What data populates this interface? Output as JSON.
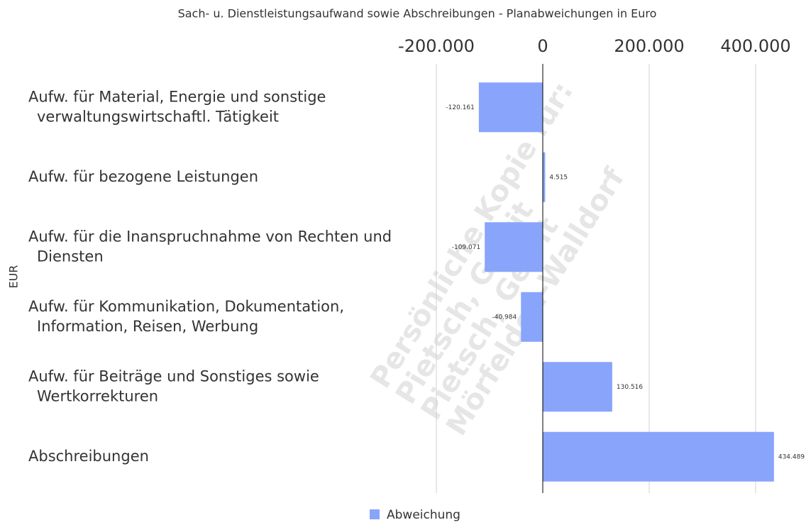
{
  "chart_data": {
    "type": "bar",
    "orientation": "horizontal",
    "title": "Sach- u. Dienstleistungsaufwand sowie Abschreibungen - Planabweichungen in Euro",
    "y_label": "EUR",
    "categories": [
      "Aufw. für Material, Energie und sonstige\nverwaltungswirtschaftl. Tätigkeit",
      "Aufw. für bezogene Leistungen",
      "Aufw. für die Inanspruchnahme von Rechten und\nDiensten",
      "Aufw. für Kommunikation, Dokumentation,\nInformation, Reisen, Werbung",
      "Aufw. für Beiträge und Sonstiges sowie\nWertkorrekturen",
      "Abschreibungen"
    ],
    "series": [
      {
        "name": "Abweichung",
        "color": "#89a4fb",
        "values": [
          -120161,
          4515,
          -109071,
          -40984,
          130516,
          434489
        ],
        "value_labels": [
          "-120.161",
          "4.515",
          "-109.071",
          "-40.984",
          "130.516",
          "434.489"
        ]
      }
    ],
    "xlim": [
      -240000,
      460000
    ],
    "xticks": [
      {
        "value": -200000,
        "label": "-200.000"
      },
      0,
      {
        "value": 200000,
        "label": "200.000"
      },
      {
        "value": 400000,
        "label": "400.000"
      }
    ],
    "grid": true,
    "legend": "bottom",
    "watermark": [
      "Persönliche Kopie für:",
      "Pietsch, Gerrit",
      "Pietsch, Gerrit",
      "Mörfelden-Walldorf"
    ]
  }
}
